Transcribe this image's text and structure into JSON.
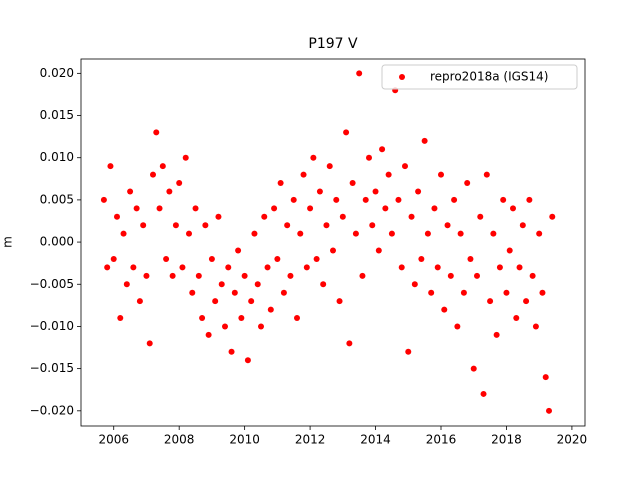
{
  "chart_data": {
    "type": "scatter",
    "title": "P197 V",
    "y_label": "m",
    "x": [
      2005.7,
      2005.8,
      2005.9,
      2006.0,
      2006.1,
      2006.2,
      2006.3,
      2006.4,
      2006.5,
      2006.6,
      2006.7,
      2006.8,
      2006.9,
      2007.0,
      2007.1,
      2007.2,
      2007.3,
      2007.4,
      2007.5,
      2007.6,
      2007.7,
      2007.8,
      2007.9,
      2008.0,
      2008.1,
      2008.2,
      2008.3,
      2008.4,
      2008.5,
      2008.6,
      2008.7,
      2008.8,
      2008.9,
      2009.0,
      2009.1,
      2009.2,
      2009.3,
      2009.4,
      2009.5,
      2009.6,
      2009.7,
      2009.8,
      2009.9,
      2010.0,
      2010.1,
      2010.2,
      2010.3,
      2010.4,
      2010.5,
      2010.6,
      2010.7,
      2010.8,
      2010.9,
      2011.0,
      2011.1,
      2011.2,
      2011.3,
      2011.4,
      2011.5,
      2011.6,
      2011.7,
      2011.8,
      2011.9,
      2012.0,
      2012.1,
      2012.2,
      2012.3,
      2012.4,
      2012.5,
      2012.6,
      2012.7,
      2012.8,
      2012.9,
      2013.0,
      2013.1,
      2013.2,
      2013.3,
      2013.4,
      2013.5,
      2013.6,
      2013.7,
      2013.8,
      2013.9,
      2014.0,
      2014.1,
      2014.2,
      2014.3,
      2014.4,
      2014.5,
      2014.6,
      2014.7,
      2014.8,
      2014.9,
      2015.0,
      2015.1,
      2015.2,
      2015.3,
      2015.4,
      2015.5,
      2015.6,
      2015.7,
      2015.8,
      2015.9,
      2016.0,
      2016.1,
      2016.2,
      2016.3,
      2016.4,
      2016.5,
      2016.6,
      2016.7,
      2016.8,
      2016.9,
      2017.0,
      2017.1,
      2017.2,
      2017.3,
      2017.4,
      2017.5,
      2017.6,
      2017.7,
      2017.8,
      2017.9,
      2018.0,
      2018.1,
      2018.2,
      2018.3,
      2018.4,
      2018.5,
      2018.6,
      2018.7,
      2018.8,
      2018.9,
      2019.0,
      2019.1,
      2019.2,
      2019.3,
      2019.4
    ],
    "series": [
      {
        "name": "repro2018a (IGS14)",
        "color": "#ff0000",
        "values": [
          0.005,
          -0.003,
          0.009,
          -0.002,
          0.003,
          -0.009,
          0.001,
          -0.005,
          0.006,
          -0.003,
          0.004,
          -0.007,
          0.002,
          -0.004,
          -0.012,
          0.008,
          0.013,
          0.004,
          0.009,
          -0.002,
          0.006,
          -0.004,
          0.002,
          0.007,
          -0.003,
          0.01,
          0.001,
          -0.006,
          0.004,
          -0.004,
          -0.009,
          0.002,
          -0.011,
          -0.002,
          -0.007,
          0.003,
          -0.005,
          -0.01,
          -0.003,
          -0.013,
          -0.006,
          -0.001,
          -0.009,
          -0.004,
          -0.014,
          -0.007,
          0.001,
          -0.005,
          -0.01,
          0.003,
          -0.003,
          -0.008,
          0.004,
          -0.002,
          0.007,
          -0.006,
          0.002,
          -0.004,
          0.005,
          -0.009,
          0.001,
          0.008,
          -0.003,
          0.004,
          0.01,
          -0.002,
          0.006,
          -0.005,
          0.002,
          0.009,
          -0.001,
          0.005,
          -0.007,
          0.003,
          0.013,
          -0.012,
          0.007,
          0.001,
          0.02,
          -0.004,
          0.005,
          0.01,
          0.002,
          0.006,
          -0.001,
          0.011,
          0.004,
          0.008,
          0.001,
          0.018,
          0.005,
          -0.003,
          0.009,
          -0.013,
          0.003,
          -0.005,
          0.006,
          -0.002,
          0.012,
          0.001,
          -0.006,
          0.004,
          -0.003,
          0.008,
          -0.008,
          0.002,
          -0.004,
          0.005,
          -0.01,
          0.001,
          -0.006,
          0.007,
          -0.002,
          -0.015,
          -0.004,
          0.003,
          -0.018,
          0.008,
          -0.007,
          0.001,
          -0.011,
          -0.003,
          0.005,
          -0.006,
          -0.001,
          0.004,
          -0.009,
          -0.003,
          0.002,
          -0.007,
          0.005,
          -0.004,
          -0.01,
          0.001,
          -0.006,
          -0.016,
          -0.02,
          0.003
        ]
      }
    ],
    "xlim": [
      2005.0,
      2020.4
    ],
    "xticks": [
      2006,
      2008,
      2010,
      2012,
      2014,
      2016,
      2018,
      2020
    ],
    "ylim": [
      -0.0218,
      0.0217
    ],
    "yticks": [
      {
        "value": -0.02,
        "label": "−0.020"
      },
      {
        "value": -0.015,
        "label": "−0.015"
      },
      {
        "value": -0.01,
        "label": "−0.010"
      },
      {
        "value": -0.005,
        "label": "−0.005"
      },
      {
        "value": 0,
        "label": "0.000"
      },
      {
        "value": 0.005,
        "label": "0.005"
      },
      {
        "value": 0.01,
        "label": "0.010"
      },
      {
        "value": 0.015,
        "label": "0.015"
      },
      {
        "value": 0.02,
        "label": "0.020"
      }
    ],
    "grid": false,
    "legend": "upper right"
  }
}
